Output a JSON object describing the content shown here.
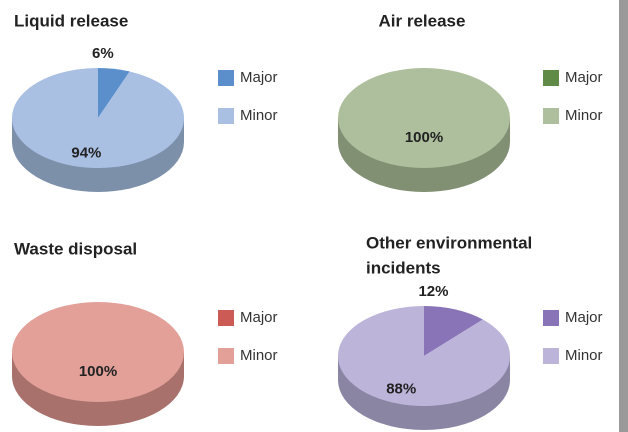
{
  "chart_data": [
    {
      "type": "pie",
      "title": "Liquid release",
      "categories": [
        "Major",
        "Minor"
      ],
      "values": [
        6,
        94
      ],
      "value_labels": [
        "6%",
        "94%"
      ],
      "colors": [
        "#5b8fcc",
        "#a9c0e3"
      ],
      "side_color": "#7d90aa"
    },
    {
      "type": "pie",
      "title": "Air release",
      "categories": [
        "Major",
        "Minor"
      ],
      "values": [
        0,
        100
      ],
      "value_labels": [
        null,
        "100%"
      ],
      "colors": [
        "#5f8b47",
        "#adbf9c"
      ],
      "side_color": "#818f73"
    },
    {
      "type": "pie",
      "title": "Waste disposal",
      "categories": [
        "Major",
        "Minor"
      ],
      "values": [
        0,
        100
      ],
      "value_labels": [
        null,
        "100%"
      ],
      "colors": [
        "#cc5b55",
        "#e2a099"
      ],
      "side_color": "#a8716b"
    },
    {
      "type": "pie",
      "title": [
        "Other environmental",
        "incidents"
      ],
      "categories": [
        "Major",
        "Minor"
      ],
      "values": [
        12,
        88
      ],
      "value_labels": [
        "12%",
        "88%"
      ],
      "colors": [
        "#8874b7",
        "#bdb4da"
      ],
      "side_color": "#8b85a4"
    }
  ]
}
